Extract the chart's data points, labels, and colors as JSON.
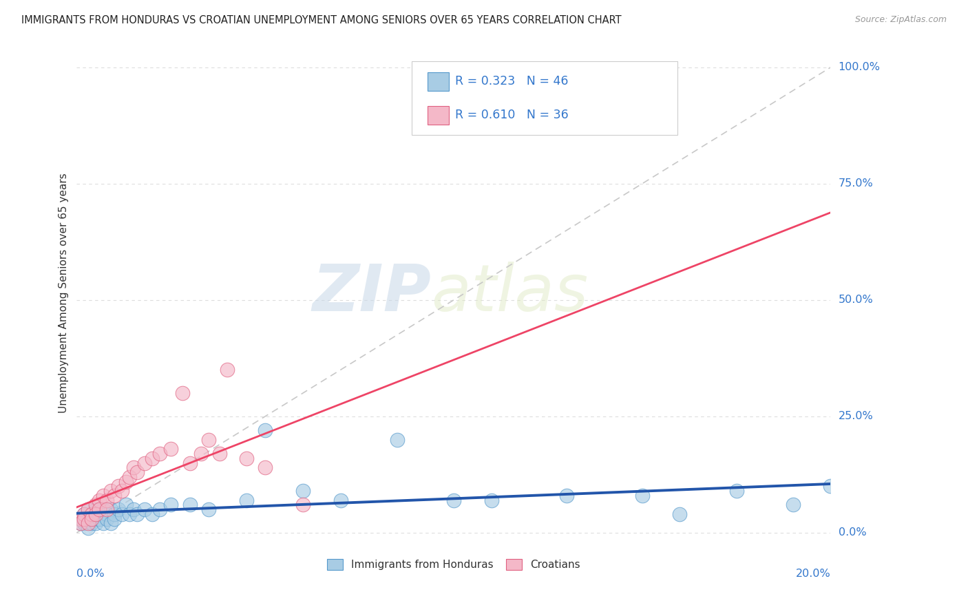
{
  "title": "IMMIGRANTS FROM HONDURAS VS CROATIAN UNEMPLOYMENT AMONG SENIORS OVER 65 YEARS CORRELATION CHART",
  "source": "Source: ZipAtlas.com",
  "ylabel": "Unemployment Among Seniors over 65 years",
  "xlim": [
    0.0,
    0.2
  ],
  "ylim": [
    -0.02,
    1.05
  ],
  "ytick_labels": [
    "0.0%",
    "25.0%",
    "50.0%",
    "75.0%",
    "100.0%"
  ],
  "ytick_values": [
    0.0,
    0.25,
    0.5,
    0.75,
    1.0
  ],
  "legend1_r": "0.323",
  "legend1_n": "46",
  "legend2_r": "0.610",
  "legend2_n": "36",
  "blue_color": "#a8cce4",
  "pink_color": "#f4b8c8",
  "blue_edge_color": "#5599cc",
  "pink_edge_color": "#e06080",
  "blue_line_color": "#2255aa",
  "pink_line_color": "#ee4466",
  "grid_color": "#dddddd",
  "trendline_gray": "#c8c8c8",
  "label_color": "#3377cc",
  "watermark_color": "#dde8f0",
  "background_color": "#ffffff",
  "blue_scatter_x": [
    0.001,
    0.002,
    0.002,
    0.003,
    0.003,
    0.003,
    0.004,
    0.004,
    0.005,
    0.005,
    0.005,
    0.006,
    0.006,
    0.007,
    0.007,
    0.008,
    0.008,
    0.009,
    0.009,
    0.01,
    0.01,
    0.011,
    0.012,
    0.013,
    0.014,
    0.015,
    0.016,
    0.018,
    0.02,
    0.022,
    0.025,
    0.03,
    0.035,
    0.045,
    0.05,
    0.06,
    0.07,
    0.085,
    0.1,
    0.11,
    0.13,
    0.15,
    0.16,
    0.175,
    0.19,
    0.2
  ],
  "blue_scatter_y": [
    0.02,
    0.04,
    0.02,
    0.03,
    0.05,
    0.01,
    0.04,
    0.02,
    0.03,
    0.05,
    0.02,
    0.04,
    0.03,
    0.05,
    0.02,
    0.04,
    0.03,
    0.05,
    0.02,
    0.04,
    0.03,
    0.05,
    0.04,
    0.06,
    0.04,
    0.05,
    0.04,
    0.05,
    0.04,
    0.05,
    0.06,
    0.06,
    0.05,
    0.07,
    0.22,
    0.09,
    0.07,
    0.2,
    0.07,
    0.07,
    0.08,
    0.08,
    0.04,
    0.09,
    0.06,
    0.1
  ],
  "pink_scatter_x": [
    0.001,
    0.001,
    0.002,
    0.002,
    0.003,
    0.003,
    0.004,
    0.004,
    0.005,
    0.005,
    0.006,
    0.006,
    0.007,
    0.008,
    0.008,
    0.009,
    0.01,
    0.011,
    0.012,
    0.013,
    0.014,
    0.015,
    0.016,
    0.018,
    0.02,
    0.022,
    0.025,
    0.028,
    0.03,
    0.033,
    0.035,
    0.038,
    0.04,
    0.045,
    0.05,
    0.06
  ],
  "pink_scatter_y": [
    0.03,
    0.02,
    0.04,
    0.03,
    0.05,
    0.02,
    0.04,
    0.03,
    0.06,
    0.04,
    0.07,
    0.05,
    0.08,
    0.07,
    0.05,
    0.09,
    0.08,
    0.1,
    0.09,
    0.11,
    0.12,
    0.14,
    0.13,
    0.15,
    0.16,
    0.17,
    0.18,
    0.3,
    0.15,
    0.17,
    0.2,
    0.17,
    0.35,
    0.16,
    0.14,
    0.06
  ],
  "watermark_zip": "ZIP",
  "watermark_atlas": "atlas"
}
